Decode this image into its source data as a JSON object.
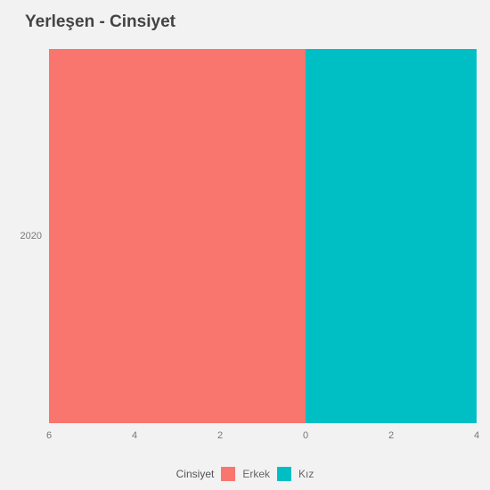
{
  "title": "Yerleşen - Cinsiyet",
  "chart": {
    "type": "diverging-bar",
    "background_color": "#f2f2f2",
    "grid_color": "#ffffff",
    "categories": [
      "2020"
    ],
    "series": [
      {
        "name": "Erkek",
        "value": 6,
        "direction": "left",
        "color": "#f8766d"
      },
      {
        "name": "Kız",
        "value": 4,
        "direction": "right",
        "color": "#00bfc4"
      }
    ],
    "x_left_max": 6,
    "x_right_max": 4,
    "x_ticks_left": [
      6,
      4,
      2,
      0
    ],
    "x_ticks_right": [
      2,
      4
    ],
    "bar_vfill": 1.0,
    "y_center": 0.5,
    "tick_color": "#777777",
    "tick_fontsize": 11,
    "title_fontsize": 19,
    "title_color": "#444444"
  },
  "legend": {
    "title": "Cinsiyet",
    "items": [
      {
        "label": "Erkek",
        "color": "#f8766d"
      },
      {
        "label": "Kız",
        "color": "#00bfc4"
      }
    ]
  }
}
